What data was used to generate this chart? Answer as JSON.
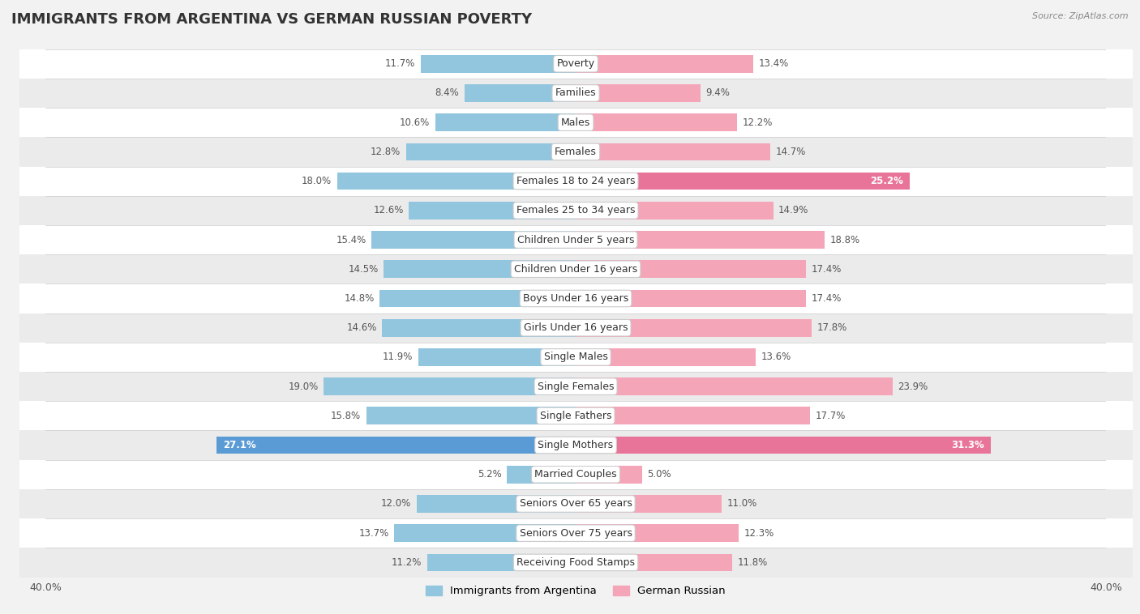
{
  "title": "IMMIGRANTS FROM ARGENTINA VS GERMAN RUSSIAN POVERTY",
  "source": "Source: ZipAtlas.com",
  "categories": [
    "Poverty",
    "Families",
    "Males",
    "Females",
    "Females 18 to 24 years",
    "Females 25 to 34 years",
    "Children Under 5 years",
    "Children Under 16 years",
    "Boys Under 16 years",
    "Girls Under 16 years",
    "Single Males",
    "Single Females",
    "Single Fathers",
    "Single Mothers",
    "Married Couples",
    "Seniors Over 65 years",
    "Seniors Over 75 years",
    "Receiving Food Stamps"
  ],
  "argentina_values": [
    11.7,
    8.4,
    10.6,
    12.8,
    18.0,
    12.6,
    15.4,
    14.5,
    14.8,
    14.6,
    11.9,
    19.0,
    15.8,
    27.1,
    5.2,
    12.0,
    13.7,
    11.2
  ],
  "german_russian_values": [
    13.4,
    9.4,
    12.2,
    14.7,
    25.2,
    14.9,
    18.8,
    17.4,
    17.4,
    17.8,
    13.6,
    23.9,
    17.7,
    31.3,
    5.0,
    11.0,
    12.3,
    11.8
  ],
  "argentina_color": "#92C5DE",
  "german_russian_color": "#F4A5B8",
  "argentina_label": "Immigrants from Argentina",
  "german_russian_label": "German Russian",
  "axis_limit": 40.0,
  "bg_color_even": "#f2f2f2",
  "bg_color_odd": "#ffffff",
  "bar_height": 0.6,
  "title_fontsize": 13,
  "label_fontsize": 9,
  "value_fontsize": 8.5,
  "highlight_argentina_color": "#5B9BD5",
  "highlight_german_russian_color": "#E8749A"
}
